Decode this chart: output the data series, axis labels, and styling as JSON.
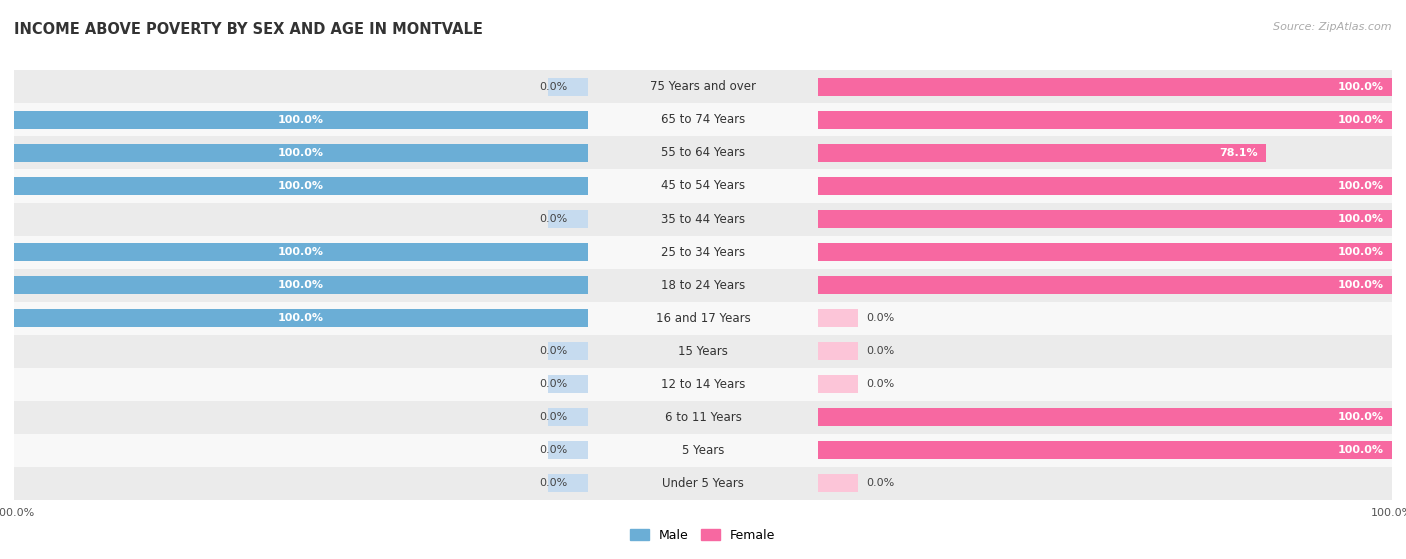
{
  "title": "INCOME ABOVE POVERTY BY SEX AND AGE IN MONTVALE",
  "source": "Source: ZipAtlas.com",
  "categories": [
    "Under 5 Years",
    "5 Years",
    "6 to 11 Years",
    "12 to 14 Years",
    "15 Years",
    "16 and 17 Years",
    "18 to 24 Years",
    "25 to 34 Years",
    "35 to 44 Years",
    "45 to 54 Years",
    "55 to 64 Years",
    "65 to 74 Years",
    "75 Years and over"
  ],
  "male": [
    0.0,
    0.0,
    0.0,
    0.0,
    0.0,
    100.0,
    100.0,
    100.0,
    0.0,
    100.0,
    100.0,
    100.0,
    0.0
  ],
  "female": [
    0.0,
    100.0,
    100.0,
    0.0,
    0.0,
    0.0,
    100.0,
    100.0,
    100.0,
    100.0,
    78.1,
    100.0,
    100.0
  ],
  "male_color": "#6baed6",
  "male_color_light": "#c6dbef",
  "female_color": "#f768a1",
  "female_color_light": "#fcc5d8",
  "male_label": "Male",
  "female_label": "Female",
  "bg_row_light": "#ebebeb",
  "bg_row_white": "#f8f8f8",
  "bar_height": 0.55,
  "stub_pct": 7.0,
  "value_fontsize": 8.0,
  "category_fontsize": 8.5,
  "title_fontsize": 10.5,
  "source_fontsize": 8.0,
  "legend_fontsize": 9.0,
  "axis_tick_label": "100.0%"
}
